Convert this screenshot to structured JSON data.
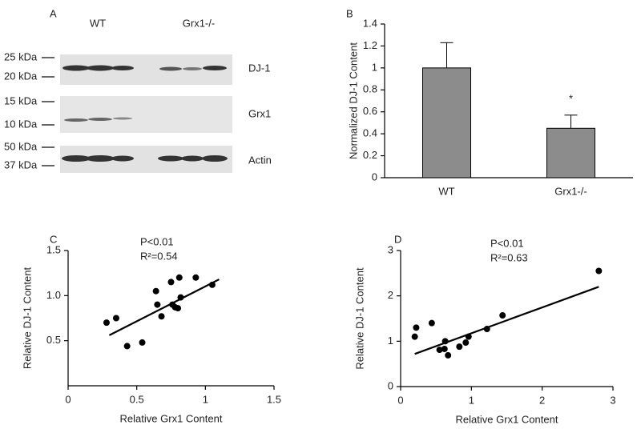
{
  "blot": {
    "panel": "A",
    "lanes": [
      "WT",
      "Grx1-/-"
    ],
    "markers": [
      "25 kDa",
      "20 kDa",
      "15 kDa",
      "10 kDa",
      "50 kDa",
      "37 kDa"
    ],
    "proteins": [
      "DJ-1",
      "Grx1",
      "Actin"
    ]
  },
  "chart_data": [
    {
      "type": "bar",
      "panel": "B",
      "ylabel": "Normalized DJ-1 Content",
      "categories": [
        "WT",
        "Grx1-/-"
      ],
      "values": [
        1,
        0.45
      ],
      "errors": [
        0.23,
        0.12
      ],
      "annotations": [
        "",
        "*"
      ],
      "color": "#8c8c8c",
      "ylim": [
        0,
        1.4
      ],
      "yticks": [
        0,
        0.2,
        0.4,
        0.6,
        0.8,
        1,
        1.2,
        1.4
      ]
    },
    {
      "type": "scatter",
      "panel": "C",
      "xlabel": "Relative Grx1 Content",
      "ylabel": "Relative DJ-1 Content",
      "annotations": [
        "P<0.01",
        "R²=0.54"
      ],
      "x": [
        0.28,
        0.35,
        0.43,
        0.54,
        0.64,
        0.65,
        0.68,
        0.76,
        0.75,
        0.78,
        0.8,
        0.81,
        0.82,
        0.93,
        1.05
      ],
      "y": [
        0.7,
        0.75,
        0.44,
        0.48,
        1.05,
        0.9,
        0.77,
        0.9,
        1.15,
        0.87,
        0.86,
        1.2,
        0.98,
        1.2,
        1.12
      ],
      "fit": {
        "x": [
          0.3,
          1.1
        ],
        "y": [
          0.56,
          1.18
        ]
      },
      "color": "#000000",
      "xlim": [
        0,
        1.5
      ],
      "xticks": [
        0,
        0.5,
        1,
        1.5
      ],
      "ylim": [
        0,
        1.5
      ],
      "yticks": [
        0.5,
        {
          "value": 1,
          "label": "1.0"
        },
        1.5
      ]
    },
    {
      "type": "scatter",
      "panel": "D",
      "xlabel": "Relative Grx1 Content",
      "ylabel": "Relative DJ-1 Content",
      "annotations": [
        "P<0.01",
        "R²=0.63"
      ],
      "x": [
        0.2,
        0.22,
        0.44,
        0.55,
        0.62,
        0.63,
        0.67,
        0.83,
        0.92,
        0.96,
        1.22,
        1.44,
        2.8
      ],
      "y": [
        1.1,
        1.3,
        1.4,
        0.81,
        0.83,
        1.0,
        0.69,
        0.88,
        0.97,
        1.1,
        1.27,
        1.57,
        2.55
      ],
      "fit": {
        "x": [
          0.2,
          2.8
        ],
        "y": [
          0.72,
          2.2
        ]
      },
      "color": "#000000",
      "xlim": [
        0,
        3
      ],
      "xticks": [
        0,
        1,
        2,
        3
      ],
      "ylim": [
        0,
        3
      ],
      "yticks": [
        0,
        1,
        2,
        3
      ]
    }
  ]
}
